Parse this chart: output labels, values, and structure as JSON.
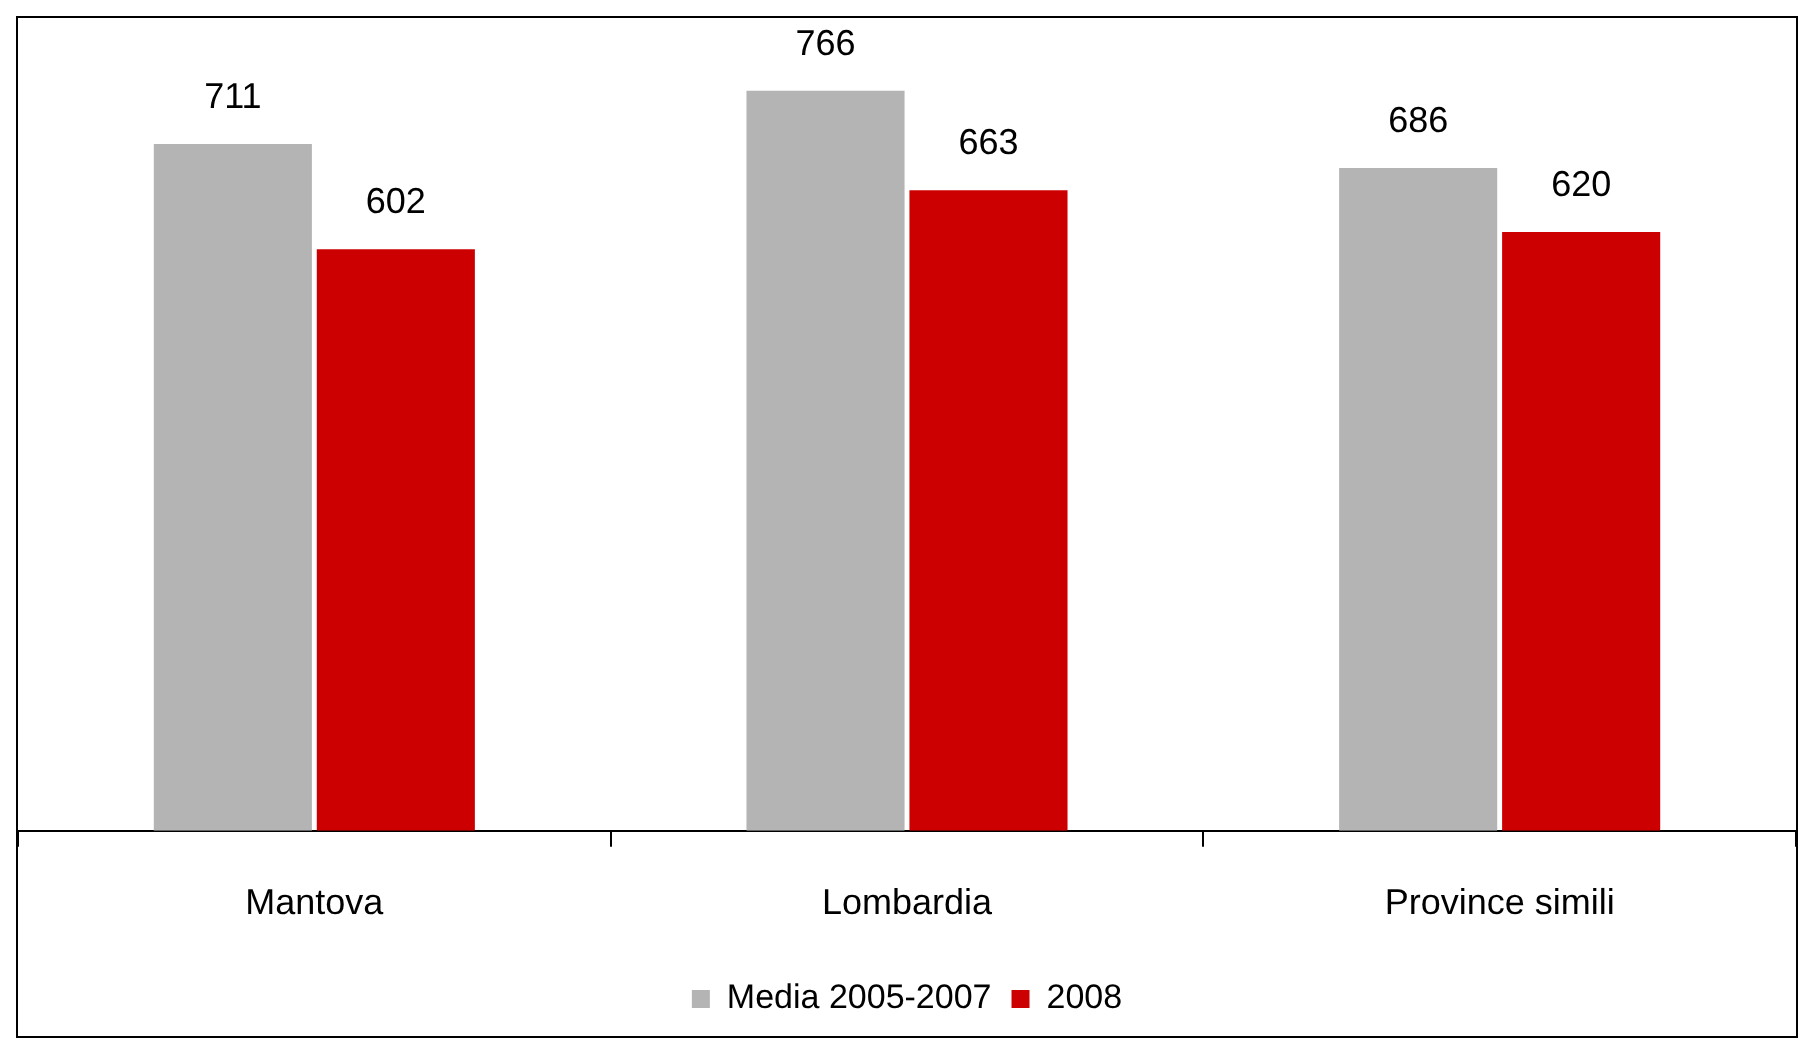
{
  "chart_data": {
    "type": "bar",
    "categories": [
      "Mantova",
      "Lombardia",
      "Province simili"
    ],
    "series": [
      {
        "name": "Media 2005-2007",
        "color": "#b4b4b4",
        "values": [
          711,
          766,
          686
        ]
      },
      {
        "name": "2008",
        "color": "#cc0000",
        "values": [
          602,
          663,
          620
        ]
      }
    ],
    "tick_labels": "x",
    "data_labels": true,
    "legend": "bottom"
  }
}
